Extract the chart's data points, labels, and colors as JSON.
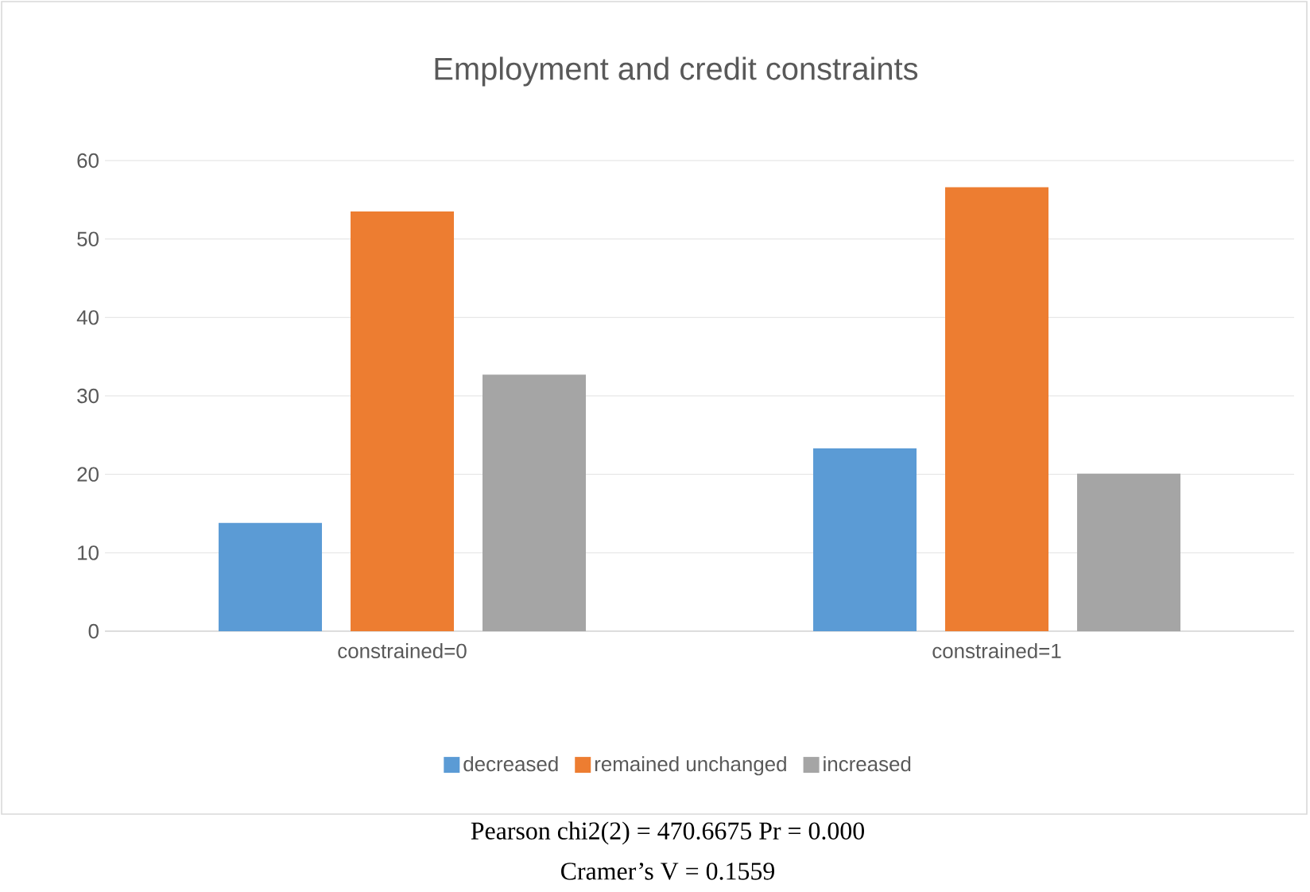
{
  "chart_data": {
    "type": "bar",
    "title": "Employment and credit constraints",
    "categories": [
      "constrained=0",
      "constrained=1"
    ],
    "series": [
      {
        "name": "decreased",
        "color": "#5b9bd5",
        "values": [
          13.8,
          23.3
        ]
      },
      {
        "name": "remained unchanged",
        "color": "#ed7d31",
        "values": [
          53.5,
          56.6
        ]
      },
      {
        "name": "increased",
        "color": "#a5a5a5",
        "values": [
          32.7,
          20.1
        ]
      }
    ],
    "ylim": [
      0,
      60
    ],
    "yticks": [
      0,
      10,
      20,
      30,
      40,
      50,
      60
    ],
    "grid": "y",
    "legend": "bottom",
    "annotations": [
      "Pearson chi2(2) = 470.6675 Pr = 0.000",
      "Cramer’s V = 0.1559"
    ]
  }
}
